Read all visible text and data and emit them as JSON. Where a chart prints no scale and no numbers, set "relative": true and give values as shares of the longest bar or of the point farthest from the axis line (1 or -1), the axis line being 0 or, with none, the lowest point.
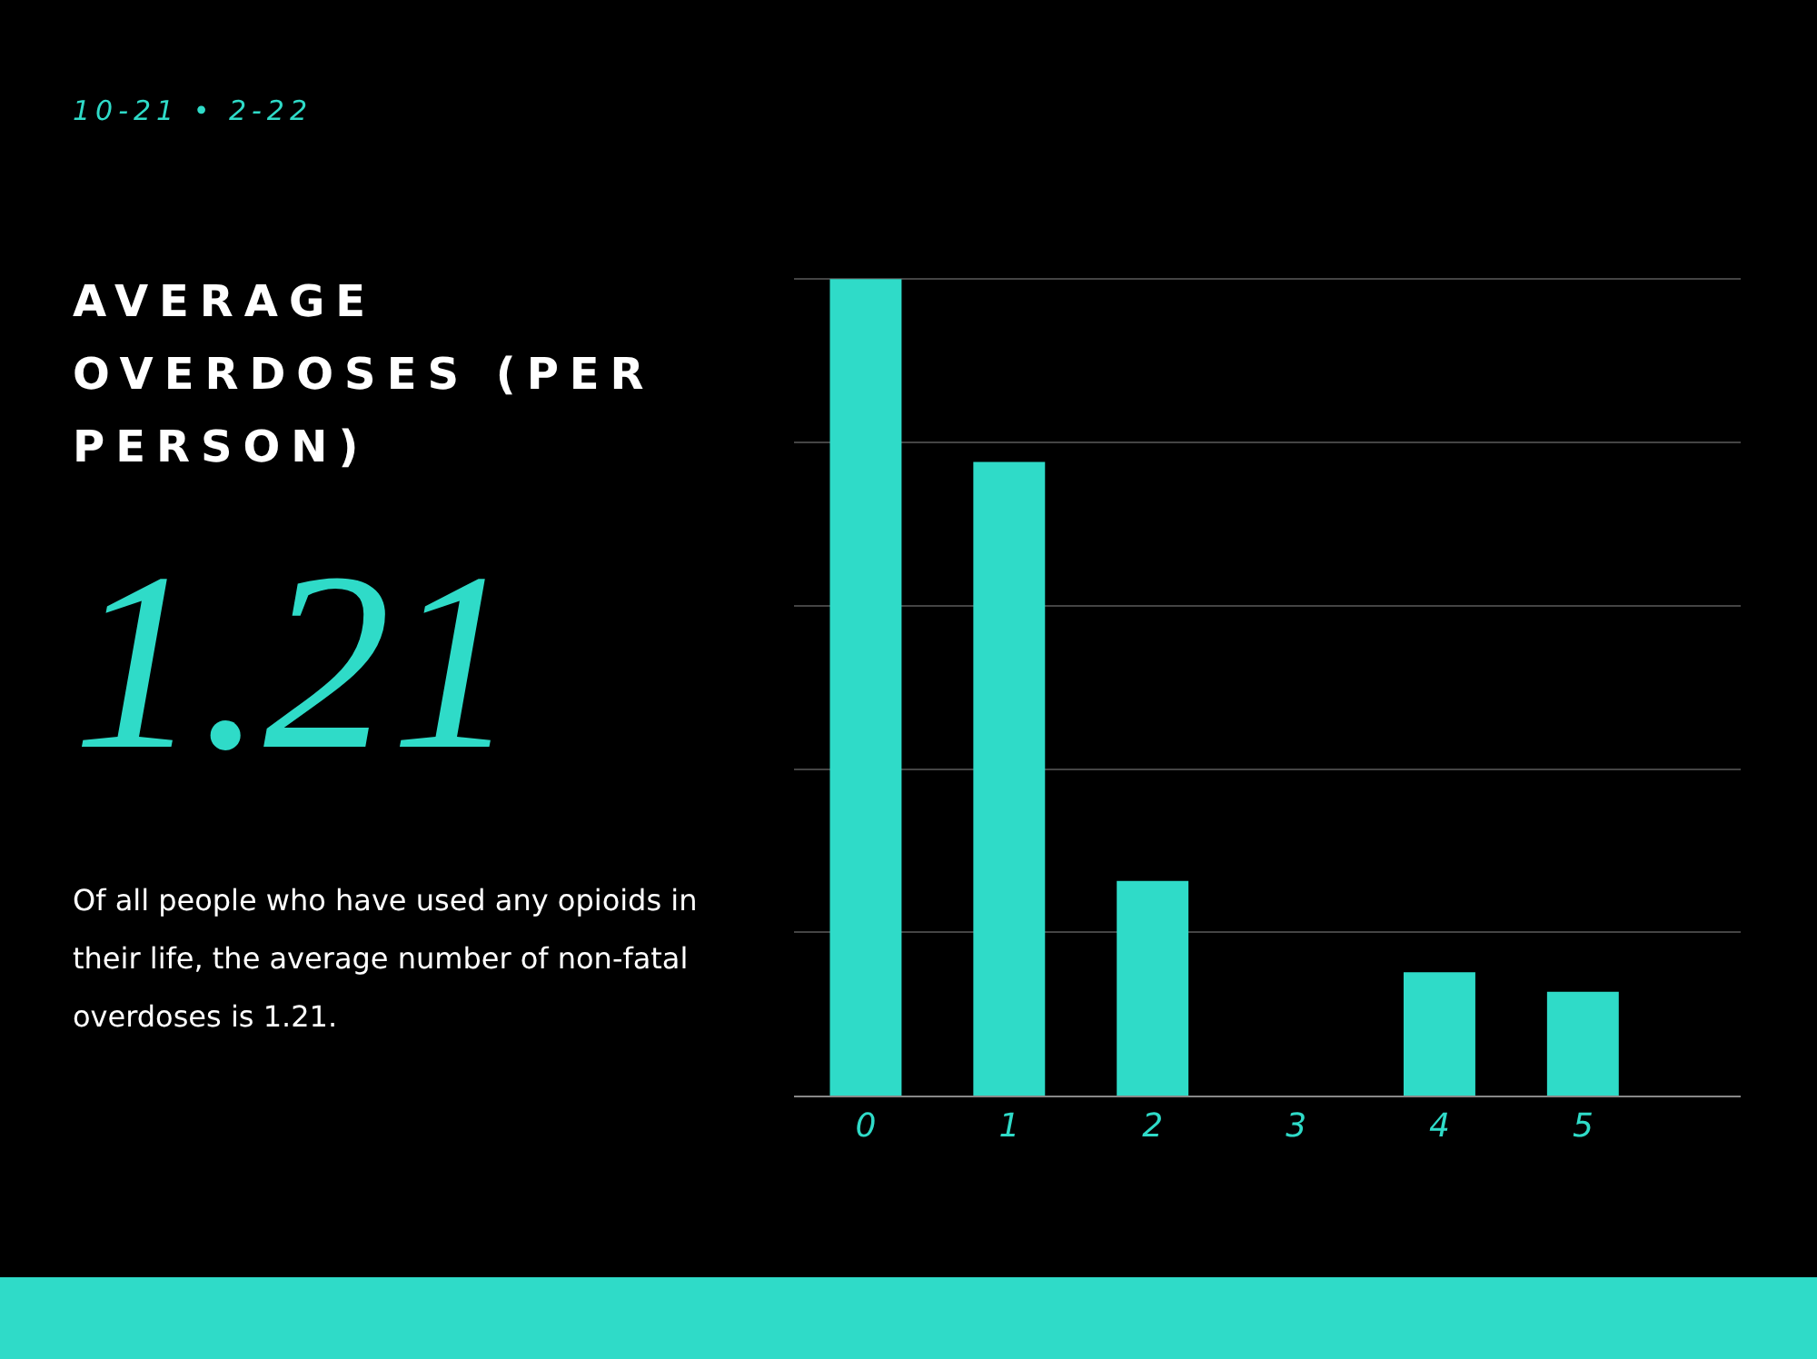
{
  "chart_data": {
    "type": "bar",
    "title": "AVERAGE OVERDOSES (PER PERSON)",
    "subtitle": "10-21 • 2-22",
    "annotations": [
      "1.21",
      "Of all people who have used any opioids in their life, the average number of non-fatal overdoses is 1.21."
    ],
    "categories": [
      "0",
      "1",
      "2",
      "3",
      "4",
      "5"
    ],
    "values": [
      1,
      0.776,
      0.263,
      0,
      0.151,
      0.127
    ],
    "color": "#2fdbc8",
    "relative": true,
    "grid": "y"
  }
}
